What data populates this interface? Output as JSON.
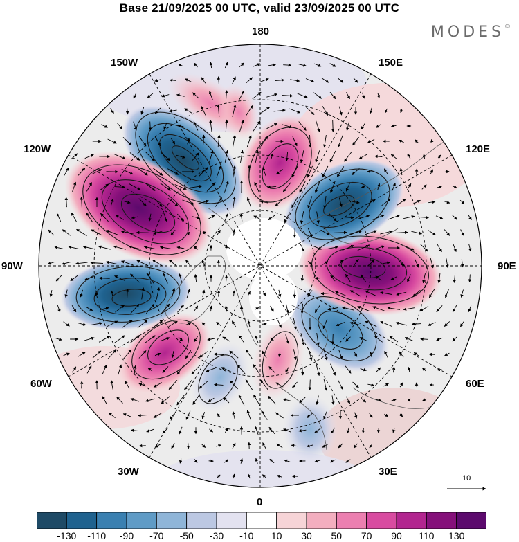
{
  "title": "Base 21/09/2025 00 UTC, valid 23/09/2025 00 UTC",
  "logo": {
    "text": "MODES",
    "mark": "©"
  },
  "longitude_labels": {
    "lon_180": "180",
    "lon_150e": "150E",
    "lon_120e": "120E",
    "lon_90e": "90E",
    "lon_60e": "60E",
    "lon_30e": "30E",
    "lon_0": "0",
    "lon_30w": "30W",
    "lon_60w": "60W",
    "lon_90w": "90W",
    "lon_120w": "120W",
    "lon_150w": "150W"
  },
  "reference_vector": {
    "label": "10"
  },
  "colorbar": {
    "labels": [
      "-130",
      "-110",
      "-90",
      "-70",
      "-50",
      "-30",
      "-10",
      "10",
      "30",
      "50",
      "70",
      "90",
      "110",
      "130"
    ],
    "colors": [
      "#1e4a66",
      "#1f628f",
      "#3a80b1",
      "#5f9bc6",
      "#8fb5d8",
      "#bcc8e3",
      "#e3e2f0",
      "#ffffff",
      "#f7d4d7",
      "#f3aebf",
      "#ec7fb0",
      "#d84ba0",
      "#b2258f",
      "#85107a",
      "#5c0a6d"
    ]
  },
  "anomaly_cells": [
    {
      "name": "low-150w-120w",
      "sign": "negative",
      "peak": -130
    },
    {
      "name": "high-120w-90w",
      "sign": "positive",
      "peak": 110
    },
    {
      "name": "low-90w",
      "sign": "negative",
      "peak": -130
    },
    {
      "name": "high-60w",
      "sign": "positive",
      "peak": 90
    },
    {
      "name": "low-45w",
      "sign": "negative",
      "peak": -50
    },
    {
      "name": "high-0-15w",
      "sign": "positive",
      "peak": 50
    },
    {
      "name": "low-45e",
      "sign": "negative",
      "peak": -90
    },
    {
      "name": "high-90e",
      "sign": "positive",
      "peak": 110
    },
    {
      "name": "low-120e",
      "sign": "negative",
      "peak": -110
    },
    {
      "name": "high-180",
      "sign": "positive",
      "peak": 90
    }
  ]
}
